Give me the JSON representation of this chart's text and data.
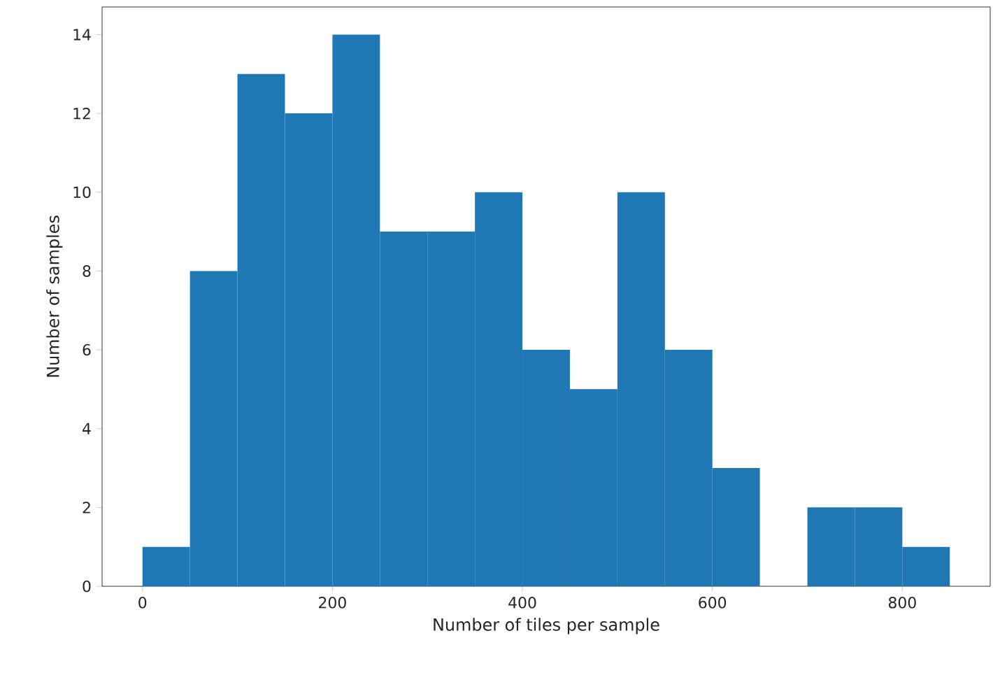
{
  "chart_data": {
    "type": "histogram",
    "xlabel": "Number of tiles per sample",
    "ylabel": "Number of samples",
    "bins": [
      0,
      50,
      100,
      150,
      200,
      250,
      300,
      350,
      400,
      450,
      500,
      550,
      600,
      650,
      700,
      750,
      800,
      850
    ],
    "values": [
      1,
      8,
      13,
      12,
      14,
      9,
      9,
      10,
      6,
      5,
      10,
      6,
      3,
      0,
      2,
      2,
      1
    ],
    "color": "#1f77b4",
    "xlim": [
      -42.5,
      892.5
    ],
    "ylim": [
      0,
      14.7
    ],
    "xticks": [
      0,
      200,
      400,
      600,
      800
    ],
    "yticks": [
      0,
      2,
      4,
      6,
      8,
      10,
      12,
      14
    ]
  }
}
